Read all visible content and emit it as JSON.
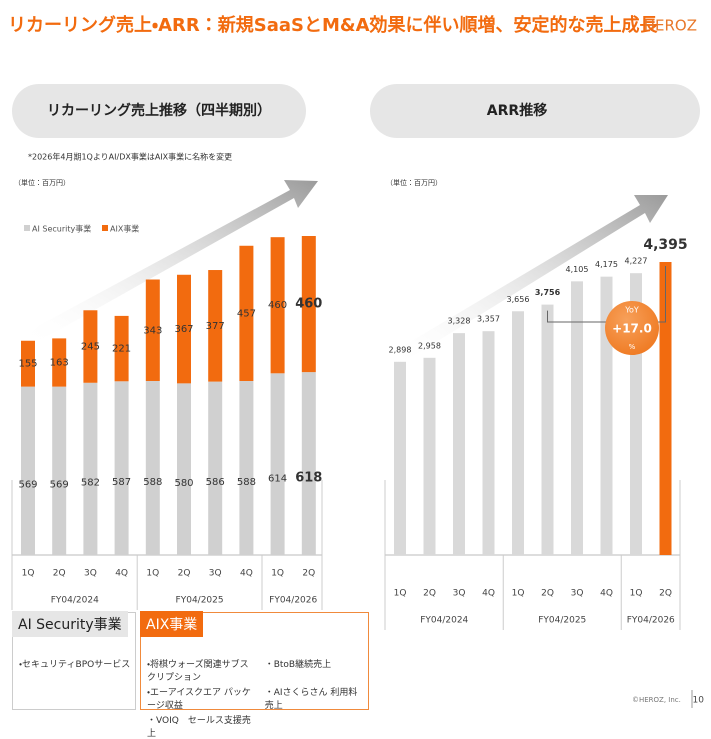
{
  "header": {
    "title": "リカーリング売上・ARR：新規SaaSとM&A効果に伴い順増、安定的な売上成長",
    "logo": "HEROZ"
  },
  "chart_data": [
    {
      "type": "stacked_bar",
      "title": "リカーリング売上推移（四半期別）",
      "note": "*2026年4月期1QよりAI/DX事業はAIX事業に名称を変更",
      "unit": "（単位：百万円）",
      "groups": [
        {
          "label": "FY04/2024",
          "categories": [
            "1Q",
            "2Q",
            "3Q",
            "4Q"
          ]
        },
        {
          "label": "FY04/2025",
          "categories": [
            "1Q",
            "2Q",
            "3Q",
            "4Q"
          ]
        },
        {
          "label": "FY04/2026",
          "categories": [
            "1Q",
            "2Q"
          ]
        }
      ],
      "series": [
        {
          "name": "AI Security事業",
          "color": "#d0d0d0",
          "values": [
            569,
            569,
            582,
            587,
            588,
            580,
            586,
            588,
            614,
            618
          ]
        },
        {
          "name": "AIX事業",
          "color": "#f26b0f",
          "values": [
            155,
            163,
            245,
            221,
            343,
            367,
            377,
            457,
            460,
            460
          ]
        }
      ]
    },
    {
      "type": "bar",
      "title": "ARR推移",
      "unit": "（単位：百万円）",
      "groups": [
        {
          "label": "FY04/2024",
          "categories": [
            "1Q",
            "2Q",
            "3Q",
            "4Q"
          ]
        },
        {
          "label": "FY04/2025",
          "categories": [
            "1Q",
            "2Q",
            "3Q",
            "4Q"
          ]
        },
        {
          "label": "FY04/2026",
          "categories": [
            "1Q",
            "2Q"
          ]
        }
      ],
      "values": [
        2898,
        2958,
        3328,
        3357,
        3656,
        3756,
        4105,
        4175,
        4227,
        4395
      ],
      "value_labels": [
        "2,898",
        "2,958",
        "3,328",
        "3,357",
        "3,656",
        "3,756",
        "4,105",
        "4,175",
        "4,227",
        "4,395"
      ],
      "colors": [
        "#d9d9d9",
        "#d9d9d9",
        "#d9d9d9",
        "#d9d9d9",
        "#d9d9d9",
        "#d9d9d9",
        "#d9d9d9",
        "#d9d9d9",
        "#d9d9d9",
        "#f26b0f"
      ],
      "annotation": {
        "label": "YoY",
        "value": 17.0,
        "value_label": "+17.0",
        "unit": "%"
      }
    }
  ],
  "segments": [
    {
      "title": "AI Security事業",
      "items": [
        "・セキュリティBPOサービス"
      ]
    },
    {
      "title": "AIX事業",
      "items": [
        "・将棋ウォーズ関連サブスクリプション",
        "・BtoB継続売上",
        "・エーアイスクエア パッケージ収益",
        "・AIさくらさん 利用料売上",
        "・VOIQ　セールス支援売上"
      ]
    }
  ],
  "footer": {
    "copyright": "©HEROZ, Inc.",
    "page": "10"
  }
}
